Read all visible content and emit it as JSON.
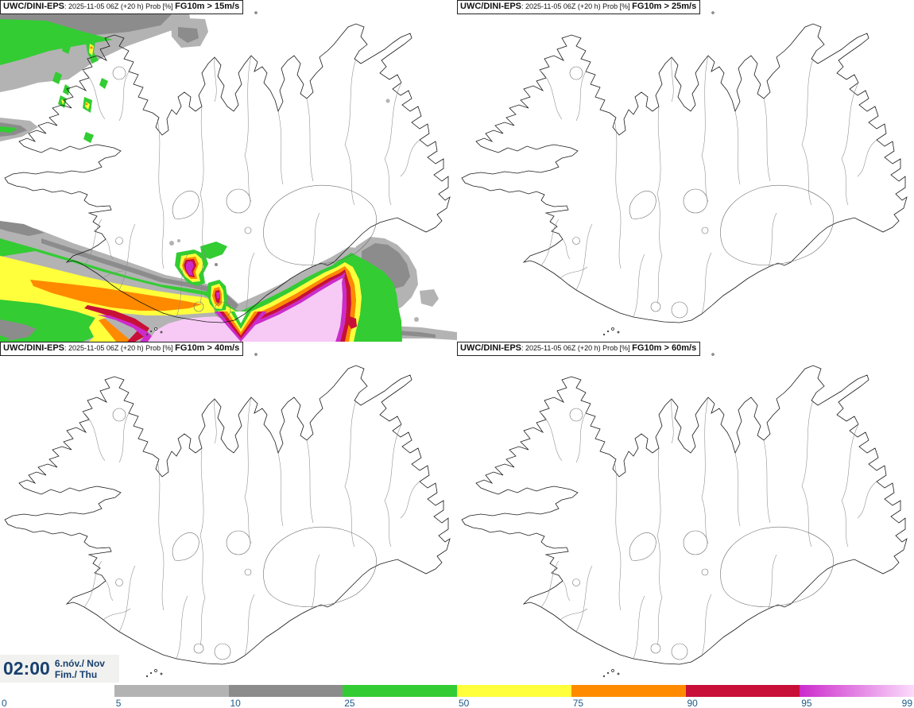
{
  "panels": [
    {
      "model": "UWC/DINI-EPS",
      "meta": ": 2025-11-05 06Z (+20 h) Prob [%] ",
      "threshold": "FG10m > 15m/s"
    },
    {
      "model": "UWC/DINI-EPS",
      "meta": ": 2025-11-05 06Z (+20 h) Prob [%] ",
      "threshold": "FG10m > 25m/s"
    },
    {
      "model": "UWC/DINI-EPS",
      "meta": ": 2025-11-05 06Z (+20 h) Prob [%] ",
      "threshold": "FG10m > 40m/s"
    },
    {
      "model": "UWC/DINI-EPS",
      "meta": ": 2025-11-05 06Z (+20 h) Prob [%] ",
      "threshold": "FG10m > 60m/s"
    }
  ],
  "timebox": {
    "time": "02:00",
    "date1": "6.nóv./ Nov",
    "date2": "Fim./ Thu"
  },
  "colorbar": {
    "tick_labels": [
      "0",
      "5",
      "10",
      "25",
      "50",
      "75",
      "90",
      "95",
      "99"
    ],
    "segments": [
      {
        "from": "5",
        "to": "10",
        "color": "#b3b3b3"
      },
      {
        "from": "10",
        "to": "25",
        "color": "#8c8c8c"
      },
      {
        "from": "25",
        "to": "50",
        "color": "#33cc33"
      },
      {
        "from": "50",
        "to": "75",
        "color": "#ffff3b"
      },
      {
        "from": "75",
        "to": "90",
        "color": "#ff8a00"
      },
      {
        "from": "90",
        "to": "95",
        "color": "#c80f38"
      },
      {
        "from": "95",
        "to": "99",
        "color_start": "#cc2bcc",
        "color_end": "#fbdcfb"
      }
    ]
  },
  "colors": {
    "lightgray": "#b3b3b3",
    "darkgray": "#8c8c8c",
    "green": "#33cc33",
    "yellow": "#ffff3b",
    "orange": "#ff8a00",
    "crimson": "#c80f38",
    "magenta": "#cc2bcc",
    "pink": "#f7c9f5",
    "label_blue": "#1d5a86",
    "time_navy": "#17406e"
  },
  "chart_data": {
    "type": "heatmap",
    "title": "UWC/DINI-EPS probability of 10 m wind gusts exceeding thresholds over Iceland",
    "run": "2025-11-05 06Z",
    "lead_time_hours": 20,
    "valid_time": "02:00 6.nóv./ Nov Fim./ Thu",
    "unit": "Prob [%]",
    "thresholds_m_s": [
      15,
      25,
      40,
      60
    ],
    "probability_levels_percent": [
      0,
      5,
      10,
      25,
      50,
      75,
      90,
      95,
      99
    ],
    "legend_position": "bottom",
    "notes": "Panel FG10m>15m/s shows 95-99% probabilities offshore south of Iceland and 25-75% patches over the Westfjords; panels for 25, 40 and 60 m/s show probabilities below 5% everywhere."
  }
}
